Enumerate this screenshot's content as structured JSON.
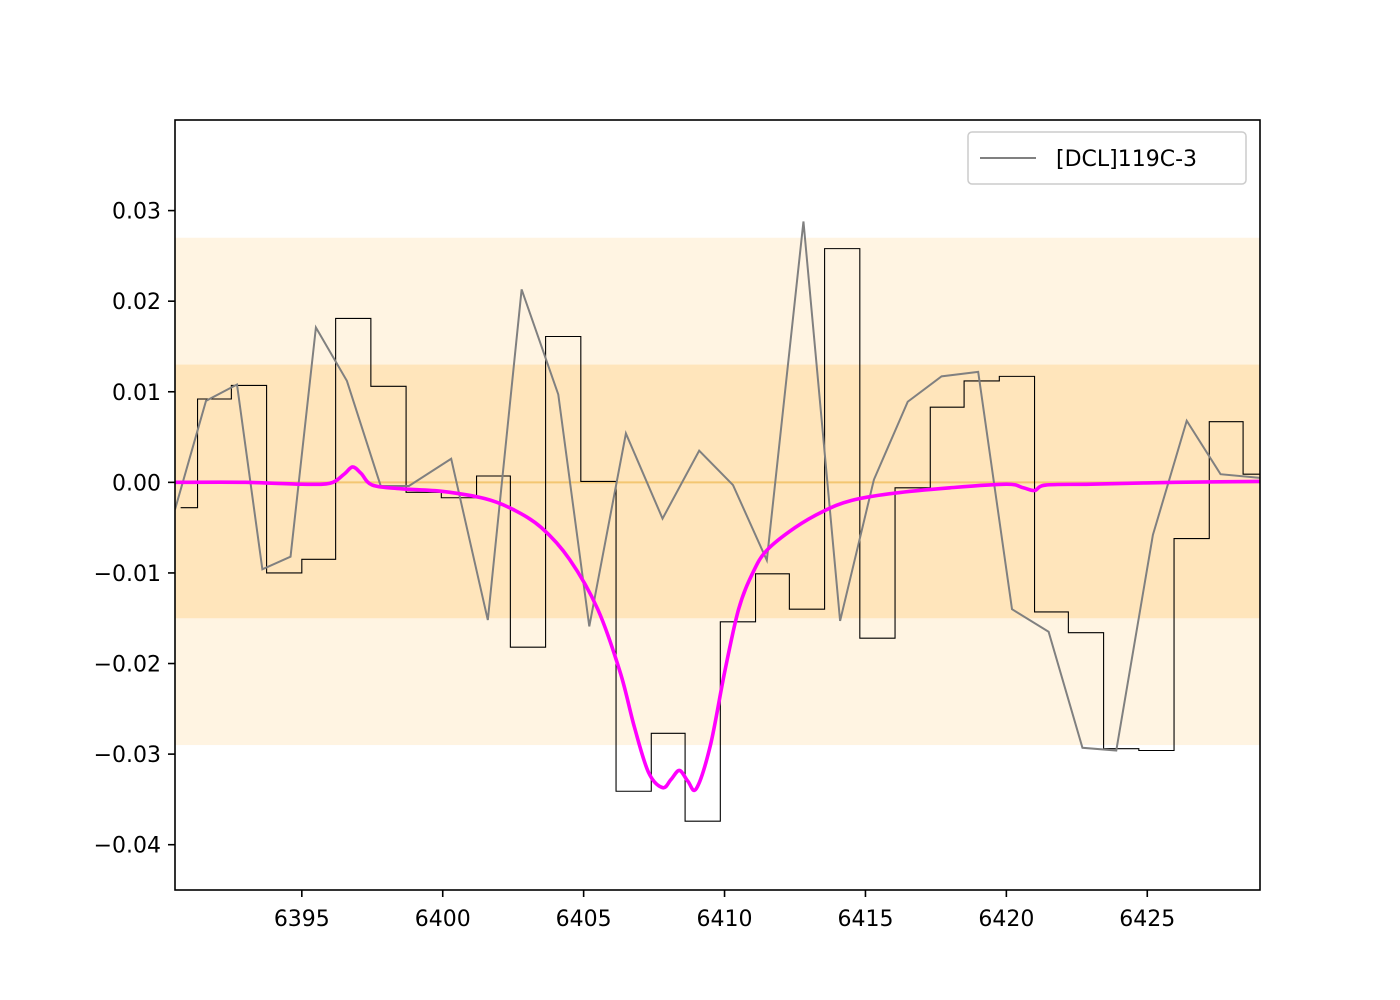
{
  "chart_data": {
    "type": "line",
    "title": "",
    "xlabel": "",
    "ylabel": "",
    "xlim": [
      6390.5,
      6429.0
    ],
    "ylim": [
      -0.045,
      0.04
    ],
    "x_ticks": [
      6395,
      6400,
      6405,
      6410,
      6415,
      6420,
      6425
    ],
    "x_tick_labels": [
      "6395",
      "6400",
      "6405",
      "6410",
      "6415",
      "6420",
      "6425"
    ],
    "y_ticks": [
      0.03,
      0.02,
      0.01,
      0.0,
      -0.01,
      -0.02,
      -0.03,
      -0.04
    ],
    "y_tick_labels": [
      "0.03",
      "0.02",
      "0.01",
      "0.00",
      "−0.01",
      "−0.02",
      "−0.03",
      "−0.04"
    ],
    "grid": false,
    "legend": {
      "placement": "upper-right",
      "entries": [
        "[DCL]119C-3"
      ]
    },
    "bands": [
      {
        "y_low": -0.029,
        "y_high": 0.027,
        "color": "#fff4e2"
      },
      {
        "y_low": -0.015,
        "y_high": 0.013,
        "color": "#ffe5bb"
      }
    ],
    "zero_line": {
      "y": 0.0,
      "color": "#f3c672"
    },
    "series": [
      {
        "name": "[DCL]119C-3",
        "style": "steps-mid",
        "color": "#000000",
        "x": [
          6390.7,
          6391.9,
          6393.1,
          6394.4,
          6395.6,
          6396.8,
          6398.1,
          6399.3,
          6400.6,
          6401.8,
          6403.0,
          6404.3,
          6405.5,
          6406.8,
          6408.0,
          6409.2,
          6410.5,
          6411.7,
          6412.9,
          6414.2,
          6415.4,
          6416.7,
          6417.9,
          6419.1,
          6420.4,
          6421.6,
          6422.8,
          6424.1,
          6425.3,
          6426.6,
          6427.8,
          6429.0
        ],
        "values": [
          -0.0028,
          0.0092,
          0.0107,
          -0.01,
          -0.0085,
          0.0181,
          0.0106,
          -0.0011,
          -0.0017,
          0.0007,
          -0.0182,
          0.0161,
          0.0001,
          -0.0341,
          -0.0277,
          -0.0374,
          -0.0154,
          -0.0101,
          -0.014,
          0.0258,
          -0.0172,
          -0.0006,
          0.0083,
          0.0112,
          0.0117,
          -0.0143,
          -0.0166,
          -0.0294,
          -0.0296,
          -0.0062,
          0.0067,
          0.0009
        ]
      },
      {
        "name": "",
        "style": "line",
        "color": "#808080",
        "x": [
          6390.5,
          6391.6,
          6392.7,
          6393.6,
          6394.6,
          6395.5,
          6396.6,
          6397.8,
          6398.8,
          6400.3,
          6401.6,
          6402.8,
          6404.1,
          6405.2,
          6406.5,
          6407.8,
          6409.1,
          6410.3,
          6411.5,
          6412.8,
          6414.1,
          6415.3,
          6416.5,
          6417.7,
          6419.0,
          6420.2,
          6421.5,
          6422.7,
          6423.9,
          6425.2,
          6426.4,
          6427.6,
          6429.0
        ],
        "values": [
          -0.003,
          0.009,
          0.0108,
          -0.0096,
          -0.0082,
          0.0171,
          0.0112,
          -0.0004,
          -0.0004,
          0.0026,
          -0.0152,
          0.0213,
          0.0097,
          -0.0159,
          0.0054,
          -0.004,
          0.0035,
          -0.0003,
          -0.0086,
          0.0288,
          -0.0153,
          0.0003,
          0.0089,
          0.0117,
          0.0122,
          -0.014,
          -0.0165,
          -0.0293,
          -0.0296,
          -0.0058,
          0.0068,
          0.0009,
          0.0005
        ]
      },
      {
        "name": "",
        "style": "smooth",
        "color": "#ff00ff",
        "x": [
          6390.5,
          6393.0,
          6395.0,
          6396.0,
          6396.5,
          6396.8,
          6397.1,
          6397.5,
          6398.5,
          6400.0,
          6401.5,
          6402.5,
          6403.5,
          6404.5,
          6405.5,
          6406.3,
          6406.8,
          6407.3,
          6407.8,
          6408.1,
          6408.4,
          6408.7,
          6409.0,
          6409.5,
          6410.0,
          6410.5,
          6411.0,
          6411.5,
          6412.5,
          6413.5,
          6414.5,
          6416.0,
          6418.0,
          6420.0,
          6420.6,
          6421.0,
          6421.4,
          6423.0,
          6426.0,
          6429.0
        ],
        "values": [
          0.0,
          0.0,
          -0.0002,
          -0.0001,
          0.0009,
          0.0017,
          0.001,
          -0.0003,
          -0.0007,
          -0.001,
          -0.0018,
          -0.003,
          -0.005,
          -0.0085,
          -0.014,
          -0.021,
          -0.027,
          -0.032,
          -0.0337,
          -0.0328,
          -0.0318,
          -0.033,
          -0.0338,
          -0.029,
          -0.021,
          -0.014,
          -0.01,
          -0.0075,
          -0.005,
          -0.0032,
          -0.002,
          -0.0012,
          -0.0006,
          -0.0002,
          -0.0006,
          -0.0009,
          -0.0003,
          -0.0002,
          0.0,
          0.0001
        ]
      }
    ]
  }
}
